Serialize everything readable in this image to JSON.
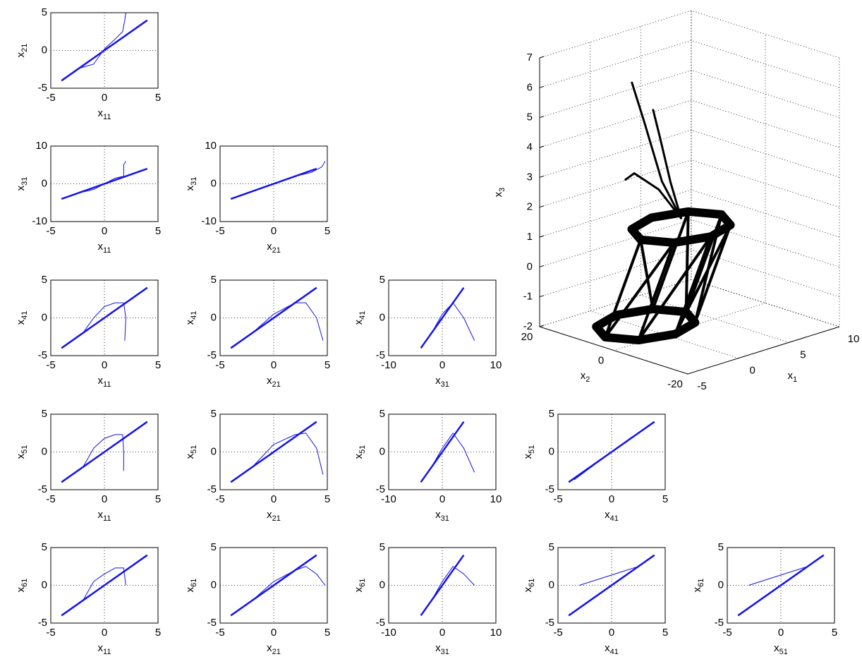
{
  "chart_data": [
    {
      "type": "line",
      "xlabel": [
        "x",
        "11"
      ],
      "ylabel": [
        "x",
        "21"
      ],
      "xlim": [
        -5,
        5
      ],
      "ylim": [
        -5,
        5
      ],
      "xticks": [
        -5,
        0,
        5
      ],
      "yticks": [
        -5,
        0,
        5
      ],
      "grid": true,
      "series": [
        {
          "color": "#1414e6",
          "line_width": 2.5,
          "x": [
            -4,
            4
          ],
          "values": [
            -4,
            4
          ]
        },
        {
          "color": "#1414e6",
          "line_width": 1,
          "x": [
            -2.2,
            -1,
            0,
            1,
            1.7,
            1.9,
            2
          ],
          "values": [
            -2.3,
            -1.8,
            0.2,
            1.5,
            2.5,
            4,
            5
          ]
        }
      ]
    },
    {
      "type": "line",
      "xlabel": [
        "x",
        "11"
      ],
      "ylabel": [
        "x",
        "31"
      ],
      "xlim": [
        -5,
        5
      ],
      "ylim": [
        -10,
        10
      ],
      "xticks": [
        -5,
        0,
        5
      ],
      "yticks": [
        -10,
        0,
        10
      ],
      "grid": true,
      "series": [
        {
          "color": "#1414e6",
          "line_width": 2.5,
          "x": [
            -4,
            4
          ],
          "values": [
            -4,
            4
          ]
        },
        {
          "color": "#1414e6",
          "line_width": 1,
          "x": [
            -2.2,
            -1,
            0,
            1,
            1.8,
            1.8,
            2
          ],
          "values": [
            -2.3,
            -1.5,
            0,
            1.5,
            2,
            5,
            6
          ]
        }
      ]
    },
    {
      "type": "line",
      "xlabel": [
        "x",
        "21"
      ],
      "ylabel": [
        "x",
        "31"
      ],
      "xlim": [
        -5,
        5
      ],
      "ylim": [
        -10,
        10
      ],
      "xticks": [
        -5,
        0,
        5
      ],
      "yticks": [
        -10,
        0,
        10
      ],
      "grid": true,
      "series": [
        {
          "color": "#1414e6",
          "line_width": 2.5,
          "x": [
            -4,
            4
          ],
          "values": [
            -4,
            4
          ]
        },
        {
          "color": "#1414e6",
          "line_width": 1,
          "x": [
            2,
            3.5,
            4.5,
            4.8
          ],
          "values": [
            2,
            3,
            4.5,
            6
          ]
        }
      ]
    },
    {
      "type": "line",
      "xlabel": [
        "x",
        "11"
      ],
      "ylabel": [
        "x",
        "41"
      ],
      "xlim": [
        -5,
        5
      ],
      "ylim": [
        -5,
        5
      ],
      "xticks": [
        -5,
        0,
        5
      ],
      "yticks": [
        -5,
        0,
        5
      ],
      "grid": true,
      "series": [
        {
          "color": "#1414e6",
          "line_width": 2.5,
          "x": [
            -4,
            4
          ],
          "values": [
            -4,
            4
          ]
        },
        {
          "color": "#1414e6",
          "line_width": 1,
          "x": [
            -2,
            -1,
            0,
            1,
            1.8,
            2,
            1.9
          ],
          "values": [
            -2,
            0,
            1.5,
            2,
            2,
            0,
            -3
          ]
        }
      ]
    },
    {
      "type": "line",
      "xlabel": [
        "x",
        "21"
      ],
      "ylabel": [
        "x",
        "41"
      ],
      "xlim": [
        -5,
        5
      ],
      "ylim": [
        -5,
        5
      ],
      "xticks": [
        -5,
        0,
        5
      ],
      "yticks": [
        -5,
        0,
        5
      ],
      "grid": true,
      "series": [
        {
          "color": "#1414e6",
          "line_width": 2.5,
          "x": [
            -4,
            4
          ],
          "values": [
            -4,
            4
          ]
        },
        {
          "color": "#1414e6",
          "line_width": 1,
          "x": [
            -2,
            0,
            2,
            3,
            4,
            4.6
          ],
          "values": [
            -2,
            0.5,
            2,
            2,
            0,
            -3
          ]
        }
      ]
    },
    {
      "type": "line",
      "xlabel": [
        "x",
        "31"
      ],
      "ylabel": [
        "x",
        "41"
      ],
      "xlim": [
        -10,
        10
      ],
      "ylim": [
        -5,
        5
      ],
      "xticks": [
        -10,
        0,
        10
      ],
      "yticks": [
        -5,
        0,
        5
      ],
      "grid": true,
      "series": [
        {
          "color": "#1414e6",
          "line_width": 2.5,
          "x": [
            -4,
            4
          ],
          "values": [
            -4,
            4
          ]
        },
        {
          "color": "#1414e6",
          "line_width": 1,
          "x": [
            -2,
            0,
            2,
            4,
            6
          ],
          "values": [
            -2,
            0.5,
            2,
            0,
            -3
          ]
        }
      ]
    },
    {
      "type": "line",
      "xlabel": [
        "x",
        "11"
      ],
      "ylabel": [
        "x",
        "51"
      ],
      "xlim": [
        -5,
        5
      ],
      "ylim": [
        -5,
        5
      ],
      "xticks": [
        -5,
        0,
        5
      ],
      "yticks": [
        -5,
        0,
        5
      ],
      "grid": true,
      "series": [
        {
          "color": "#1414e6",
          "line_width": 2.5,
          "x": [
            -4,
            4
          ],
          "values": [
            -4,
            4
          ]
        },
        {
          "color": "#1414e6",
          "line_width": 1,
          "x": [
            -2,
            -1,
            0,
            1,
            1.7,
            1.8,
            1.8
          ],
          "values": [
            -2,
            0.5,
            1.8,
            2.3,
            2.3,
            0,
            -2.5
          ]
        }
      ]
    },
    {
      "type": "line",
      "xlabel": [
        "x",
        "21"
      ],
      "ylabel": [
        "x",
        "51"
      ],
      "xlim": [
        -5,
        5
      ],
      "ylim": [
        -5,
        5
      ],
      "xticks": [
        -5,
        0,
        5
      ],
      "yticks": [
        -5,
        0,
        5
      ],
      "grid": true,
      "series": [
        {
          "color": "#1414e6",
          "line_width": 2.5,
          "x": [
            -4,
            4
          ],
          "values": [
            -4,
            4
          ]
        },
        {
          "color": "#1414e6",
          "line_width": 1,
          "x": [
            -2,
            0,
            2,
            3,
            4,
            4.6
          ],
          "values": [
            -2,
            1,
            2.3,
            2.5,
            0.5,
            -3
          ]
        }
      ]
    },
    {
      "type": "line",
      "xlabel": [
        "x",
        "31"
      ],
      "ylabel": [
        "x",
        "51"
      ],
      "xlim": [
        -10,
        10
      ],
      "ylim": [
        -5,
        5
      ],
      "xticks": [
        -10,
        0,
        10
      ],
      "yticks": [
        -5,
        0,
        5
      ],
      "grid": true,
      "series": [
        {
          "color": "#1414e6",
          "line_width": 2.5,
          "x": [
            -4,
            4
          ],
          "values": [
            -4,
            4
          ]
        },
        {
          "color": "#1414e6",
          "line_width": 1,
          "x": [
            -2,
            0,
            2,
            4,
            6
          ],
          "values": [
            -2,
            0.5,
            2.5,
            0.5,
            -2.7
          ]
        }
      ]
    },
    {
      "type": "line",
      "xlabel": [
        "x",
        "41"
      ],
      "ylabel": [
        "x",
        "51"
      ],
      "xlim": [
        -5,
        5
      ],
      "ylim": [
        -5,
        5
      ],
      "xticks": [
        -5,
        0,
        5
      ],
      "yticks": [
        -5,
        0,
        5
      ],
      "grid": true,
      "series": [
        {
          "color": "#1414e6",
          "line_width": 2.5,
          "x": [
            -4,
            4
          ],
          "values": [
            -4,
            4
          ]
        },
        {
          "color": "#1414e6",
          "line_width": 1,
          "x": [
            -3.5,
            2
          ],
          "values": [
            -3.7,
            2.1
          ]
        }
      ]
    },
    {
      "type": "line",
      "xlabel": [
        "x",
        "11"
      ],
      "ylabel": [
        "x",
        "61"
      ],
      "xlim": [
        -5,
        5
      ],
      "ylim": [
        -5,
        5
      ],
      "xticks": [
        -5,
        0,
        5
      ],
      "yticks": [
        -5,
        0,
        5
      ],
      "grid": true,
      "series": [
        {
          "color": "#1414e6",
          "line_width": 2.5,
          "x": [
            -4,
            4
          ],
          "values": [
            -4,
            4
          ]
        },
        {
          "color": "#1414e6",
          "line_width": 1,
          "x": [
            -2,
            -1,
            0,
            1,
            1.8,
            2
          ],
          "values": [
            -2,
            0.5,
            1.5,
            2.3,
            2.3,
            0
          ]
        }
      ]
    },
    {
      "type": "line",
      "xlabel": [
        "x",
        "21"
      ],
      "ylabel": [
        "x",
        "61"
      ],
      "xlim": [
        -5,
        5
      ],
      "ylim": [
        -5,
        5
      ],
      "xticks": [
        -5,
        0,
        5
      ],
      "yticks": [
        -5,
        0,
        5
      ],
      "grid": true,
      "series": [
        {
          "color": "#1414e6",
          "line_width": 2.5,
          "x": [
            -4,
            4
          ],
          "values": [
            -4,
            4
          ]
        },
        {
          "color": "#1414e6",
          "line_width": 1,
          "x": [
            -2,
            0,
            2,
            3,
            4,
            4.8
          ],
          "values": [
            -2,
            0.5,
            2,
            2.5,
            1.5,
            0
          ]
        }
      ]
    },
    {
      "type": "line",
      "xlabel": [
        "x",
        "31"
      ],
      "ylabel": [
        "x",
        "61"
      ],
      "xlim": [
        -10,
        10
      ],
      "ylim": [
        -5,
        5
      ],
      "xticks": [
        -10,
        0,
        10
      ],
      "yticks": [
        -5,
        0,
        5
      ],
      "grid": true,
      "series": [
        {
          "color": "#1414e6",
          "line_width": 2.5,
          "x": [
            -4,
            4
          ],
          "values": [
            -4,
            4
          ]
        },
        {
          "color": "#1414e6",
          "line_width": 1,
          "x": [
            -2,
            0,
            2,
            4,
            6
          ],
          "values": [
            -2,
            0.5,
            2.5,
            1.5,
            0
          ]
        }
      ]
    },
    {
      "type": "line",
      "xlabel": [
        "x",
        "41"
      ],
      "ylabel": [
        "x",
        "61"
      ],
      "xlim": [
        -5,
        5
      ],
      "ylim": [
        -5,
        5
      ],
      "xticks": [
        -5,
        0,
        5
      ],
      "yticks": [
        -5,
        0,
        5
      ],
      "grid": true,
      "series": [
        {
          "color": "#1414e6",
          "line_width": 2.5,
          "x": [
            -4,
            4
          ],
          "values": [
            -4,
            4
          ]
        },
        {
          "color": "#1414e6",
          "line_width": 1,
          "x": [
            -3,
            2.5
          ],
          "values": [
            0,
            2.5
          ]
        }
      ]
    },
    {
      "type": "line",
      "xlabel": [
        "x",
        "51"
      ],
      "ylabel": [
        "x",
        "61"
      ],
      "xlim": [
        -5,
        5
      ],
      "ylim": [
        -5,
        5
      ],
      "xticks": [
        -5,
        0,
        5
      ],
      "yticks": [
        -5,
        0,
        5
      ],
      "grid": true,
      "series": [
        {
          "color": "#1414e6",
          "line_width": 2.5,
          "x": [
            -4,
            4
          ],
          "values": [
            -4,
            4
          ]
        },
        {
          "color": "#1414e6",
          "line_width": 1,
          "x": [
            -3,
            2.5
          ],
          "values": [
            0,
            2.5
          ]
        }
      ]
    },
    {
      "type": "line3d",
      "xlabel": [
        "x",
        "1"
      ],
      "ylabel": [
        "x",
        "2"
      ],
      "zlabel": [
        "x",
        "3"
      ],
      "xlim": [
        -5,
        10
      ],
      "ylim": [
        -20,
        20
      ],
      "zlim": [
        -2,
        7
      ],
      "xticks": [
        -5,
        0,
        5,
        10
      ],
      "yticks": [
        -20,
        0,
        20
      ],
      "zticks": [
        -2,
        -1,
        0,
        1,
        2,
        3,
        4,
        5,
        6,
        7
      ],
      "grid": true,
      "series": [
        {
          "color": "#000000",
          "line_width": 12,
          "x": [
            5.3,
            4.1,
            1.3,
            -1.5,
            -2.7,
            -1.5,
            1.3,
            4.1,
            5.3
          ],
          "values": [
            -1,
            4.7,
            7,
            4.7,
            -1,
            -6.7,
            -9,
            -6.7,
            -1
          ],
          "z": [
            1.5,
            1.5,
            1.5,
            1.5,
            1.5,
            1.5,
            1.5,
            1.5,
            1.5
          ]
        },
        {
          "color": "#000000",
          "line_width": 12,
          "x": [
            3.7,
            2.5,
            -0.3,
            -3.1,
            -4.3,
            -3.1,
            -0.3,
            2.5,
            3.7
          ],
          "values": [
            4.2,
            9.9,
            12.2,
            9.9,
            4.2,
            -1.5,
            -3.8,
            -1.5,
            4.2
          ],
          "z": [
            -1.8,
            -1.8,
            -1.8,
            -1.8,
            -1.8,
            -1.8,
            -1.8,
            -1.8,
            -1.8
          ]
        },
        {
          "color": "#000000",
          "line_width": 4,
          "x": [
            5.3,
            3.7,
            4.1,
            2.5,
            -2.7,
            -4.3,
            -1.5,
            -3.1,
            1.3,
            -0.3,
            4.1,
            2.5,
            5.3,
            3.7
          ],
          "values": [
            -1,
            4.2,
            4.7,
            9.9,
            -1,
            4.2,
            -6.7,
            -1.5,
            -9,
            -3.8,
            -6.7,
            -1.5,
            -1,
            4.2
          ],
          "z": [
            1.5,
            -1.8,
            1.5,
            -1.8,
            1.5,
            -1.8,
            1.5,
            -1.8,
            1.5,
            -1.8,
            1.5,
            -1.8,
            1.5,
            -1.8
          ]
        },
        {
          "color": "#000000",
          "line_width": 3,
          "x": [
            1.3,
            0.5,
            -0.5,
            -1
          ],
          "values": [
            -1,
            2,
            4,
            6
          ],
          "z": [
            1.8,
            3,
            5,
            6.3
          ]
        },
        {
          "color": "#000000",
          "line_width": 3,
          "x": [
            1.3,
            0.8,
            0.3,
            0
          ],
          "values": [
            -1,
            0.5,
            2,
            3
          ],
          "z": [
            1.8,
            3,
            4.5,
            5.4
          ]
        },
        {
          "color": "#000000",
          "line_width": 3,
          "x": [
            1.3,
            0,
            -1.5,
            -2
          ],
          "values": [
            -1,
            1.5,
            4,
            5
          ],
          "z": [
            1.8,
            2.8,
            3.4,
            3.2
          ]
        }
      ]
    }
  ]
}
